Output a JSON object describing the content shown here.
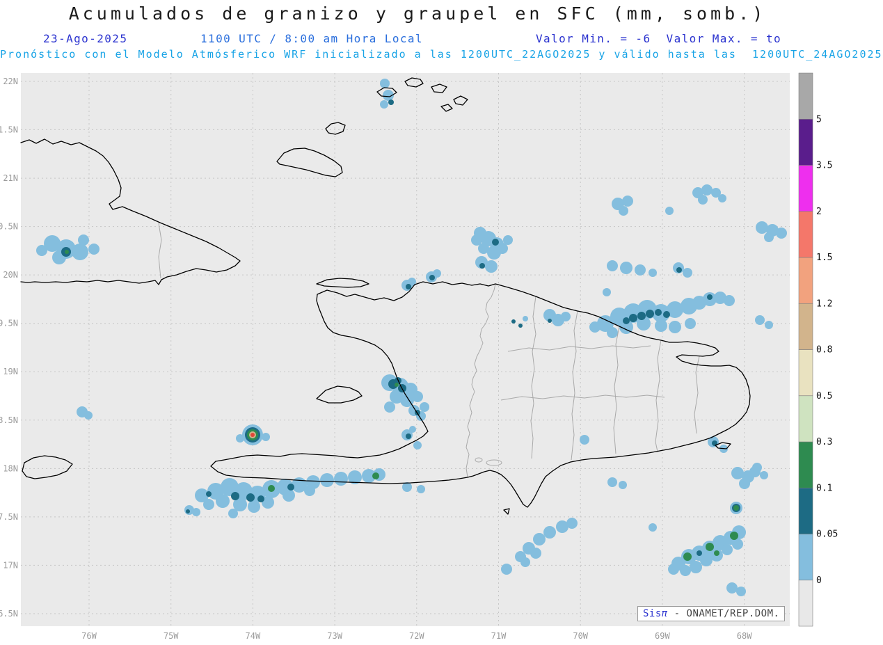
{
  "header": {
    "title": "Acumulados de granizo y graupel en SFC (mm, somb.)",
    "date": "23-Ago-2025",
    "time": "1100 UTC / 8:00 am Hora Local",
    "minmax": "Valor Min. = -6  Valor Max. = to",
    "forecast": "Pronóstico con el Modelo Atmósferico WRF inicializado a las 1200UTC_22AGO2025 y válido hasta las  1200UTC_24AGO2025"
  },
  "watermark": {
    "brand": "Sis",
    "pi": "π",
    "org": "- ONAMET/REP.DOM."
  },
  "colors": {
    "title": "#1b1b1b",
    "date": "#2b33cf",
    "time": "#2b6fdd",
    "forecast": "#17a3e6",
    "axis": "#9a9a9a",
    "map_bg": "#eaeaea",
    "grid": "#c6c6c6",
    "coast": "#000000",
    "admin": "#a9a9a9",
    "colorbar_label": "#111111",
    "wm_blue": "#2b33cf",
    "wm_text": "#444444"
  },
  "chart_data": {
    "type": "heatmap",
    "title": "Acumulados de granizo y graupel en SFC (mm, somb.)",
    "units": "mm",
    "value_min": "-6",
    "value_max": "to",
    "x_tick_labels": [
      "76W",
      "75W",
      "74W",
      "73W",
      "72W",
      "71W",
      "70W",
      "69W",
      "68W"
    ],
    "y_tick_labels": [
      "22N",
      "1.5N",
      "21N",
      "0.5N",
      "20N",
      "9.5N",
      "19N",
      "8.5N",
      "18N",
      "7.5N",
      "17N",
      "6.5N"
    ],
    "colorbar": {
      "tick_labels_top_to_bottom": [
        "5",
        "3.5",
        "2",
        "1.5",
        "1.2",
        "0.8",
        "0.5",
        "0.3",
        "0.1",
        "0.05",
        "0"
      ],
      "segment_colors_bottom_to_top": [
        "#e8e8e8",
        "#84bede",
        "#1d6b84",
        "#2e8b50",
        "#cfe3c0",
        "#e9e2c0",
        "#d2b48c",
        "#f2a27e",
        "#f4776a",
        "#ee2fee",
        "#5a1d8c",
        "#a8a8a8"
      ]
    },
    "palette": {
      "L": "#84bede",
      "T": "#1d6b84",
      "G": "#2e8b50",
      "N": "#d2b48c",
      "R": "#e04838"
    },
    "blobs": [
      [
        75,
        245,
        12,
        "L"
      ],
      [
        95,
        253,
        14,
        "L"
      ],
      [
        115,
        257,
        12,
        "L"
      ],
      [
        85,
        265,
        10,
        "L"
      ],
      [
        120,
        240,
        8,
        "L"
      ],
      [
        60,
        255,
        8,
        "L"
      ],
      [
        135,
        253,
        8,
        "L"
      ],
      [
        118,
        487,
        8,
        "L"
      ],
      [
        127,
        492,
        6,
        "L"
      ],
      [
        553,
        15,
        7,
        "L"
      ],
      [
        558,
        32,
        8,
        "L"
      ],
      [
        552,
        45,
        6,
        "L"
      ],
      [
        585,
        305,
        8,
        "L"
      ],
      [
        592,
        300,
        6,
        "L"
      ],
      [
        620,
        293,
        8,
        "L"
      ],
      [
        628,
        288,
        6,
        "L"
      ],
      [
        690,
        230,
        9,
        "L"
      ],
      [
        702,
        238,
        11,
        "L"
      ],
      [
        714,
        246,
        10,
        "L"
      ],
      [
        695,
        252,
        8,
        "L"
      ],
      [
        710,
        258,
        10,
        "L"
      ],
      [
        692,
        272,
        9,
        "L"
      ],
      [
        706,
        278,
        9,
        "L"
      ],
      [
        722,
        252,
        8,
        "L"
      ],
      [
        730,
        240,
        7,
        "L"
      ],
      [
        685,
        240,
        8,
        "L"
      ],
      [
        790,
        348,
        9,
        "L"
      ],
      [
        802,
        355,
        9,
        "L"
      ],
      [
        813,
        350,
        7,
        "L"
      ],
      [
        870,
        360,
        12,
        "L"
      ],
      [
        890,
        350,
        13,
        "L"
      ],
      [
        910,
        345,
        14,
        "L"
      ],
      [
        930,
        340,
        14,
        "L"
      ],
      [
        950,
        345,
        13,
        "L"
      ],
      [
        970,
        340,
        12,
        "L"
      ],
      [
        990,
        335,
        12,
        "L"
      ],
      [
        1005,
        330,
        10,
        "L"
      ],
      [
        1020,
        325,
        10,
        "L"
      ],
      [
        1035,
        323,
        9,
        "L"
      ],
      [
        1048,
        327,
        8,
        "L"
      ],
      [
        900,
        365,
        10,
        "L"
      ],
      [
        925,
        360,
        10,
        "L"
      ],
      [
        950,
        363,
        9,
        "L"
      ],
      [
        880,
        373,
        8,
        "L"
      ],
      [
        855,
        365,
        8,
        "L"
      ],
      [
        970,
        365,
        9,
        "L"
      ],
      [
        992,
        360,
        8,
        "L"
      ],
      [
        872,
        315,
        6,
        "L"
      ],
      [
        880,
        277,
        8,
        "L"
      ],
      [
        900,
        280,
        9,
        "L"
      ],
      [
        920,
        283,
        8,
        "L"
      ],
      [
        938,
        287,
        6,
        "L"
      ],
      [
        888,
        188,
        9,
        "L"
      ],
      [
        902,
        184,
        8,
        "L"
      ],
      [
        896,
        198,
        7,
        "L"
      ],
      [
        1003,
        172,
        8,
        "L"
      ],
      [
        1016,
        168,
        8,
        "L"
      ],
      [
        1029,
        172,
        7,
        "L"
      ],
      [
        1038,
        180,
        6,
        "L"
      ],
      [
        1010,
        182,
        7,
        "L"
      ],
      [
        962,
        198,
        6,
        "L"
      ],
      [
        1095,
        222,
        9,
        "L"
      ],
      [
        1110,
        226,
        9,
        "L"
      ],
      [
        1123,
        230,
        8,
        "L"
      ],
      [
        1105,
        236,
        7,
        "L"
      ],
      [
        975,
        280,
        8,
        "L"
      ],
      [
        988,
        287,
        7,
        "L"
      ],
      [
        1092,
        355,
        7,
        "L"
      ],
      [
        1105,
        362,
        6,
        "L"
      ],
      [
        560,
        445,
        12,
        "L"
      ],
      [
        575,
        450,
        12,
        "L"
      ],
      [
        590,
        455,
        10,
        "L"
      ],
      [
        570,
        465,
        10,
        "L"
      ],
      [
        585,
        470,
        10,
        "L"
      ],
      [
        560,
        480,
        8,
        "L"
      ],
      [
        600,
        465,
        8,
        "L"
      ],
      [
        610,
        480,
        7,
        "L"
      ],
      [
        595,
        485,
        8,
        "L"
      ],
      [
        605,
        493,
        7,
        "L"
      ],
      [
        363,
        520,
        15,
        "L"
      ],
      [
        345,
        525,
        6,
        "L"
      ],
      [
        382,
        523,
        6,
        "L"
      ],
      [
        290,
        607,
        10,
        "L"
      ],
      [
        310,
        601,
        12,
        "L"
      ],
      [
        330,
        595,
        13,
        "L"
      ],
      [
        350,
        601,
        13,
        "L"
      ],
      [
        370,
        605,
        12,
        "L"
      ],
      [
        390,
        598,
        13,
        "L"
      ],
      [
        410,
        595,
        12,
        "L"
      ],
      [
        430,
        592,
        11,
        "L"
      ],
      [
        450,
        588,
        10,
        "L"
      ],
      [
        470,
        585,
        10,
        "L"
      ],
      [
        490,
        583,
        10,
        "L"
      ],
      [
        510,
        581,
        10,
        "L"
      ],
      [
        530,
        579,
        10,
        "L"
      ],
      [
        545,
        577,
        9,
        "L"
      ],
      [
        320,
        615,
        10,
        "L"
      ],
      [
        345,
        620,
        10,
        "L"
      ],
      [
        365,
        623,
        9,
        "L"
      ],
      [
        385,
        617,
        9,
        "L"
      ],
      [
        300,
        620,
        8,
        "L"
      ],
      [
        335,
        633,
        7,
        "L"
      ],
      [
        415,
        607,
        9,
        "L"
      ],
      [
        445,
        600,
        8,
        "L"
      ],
      [
        585,
        595,
        7,
        "L"
      ],
      [
        605,
        598,
        6,
        "L"
      ],
      [
        272,
        628,
        7,
        "L"
      ],
      [
        282,
        631,
        6,
        "L"
      ],
      [
        585,
        520,
        8,
        "L"
      ],
      [
        600,
        535,
        6,
        "L"
      ],
      [
        593,
        512,
        5,
        "L"
      ],
      [
        755,
        353,
        4,
        "L"
      ],
      [
        728,
        713,
        8,
        "L"
      ],
      [
        748,
        695,
        8,
        "L"
      ],
      [
        760,
        683,
        9,
        "L"
      ],
      [
        775,
        670,
        9,
        "L"
      ],
      [
        790,
        660,
        9,
        "L"
      ],
      [
        808,
        652,
        9,
        "L"
      ],
      [
        822,
        647,
        8,
        "L"
      ],
      [
        755,
        703,
        7,
        "L"
      ],
      [
        770,
        690,
        8,
        "L"
      ],
      [
        975,
        705,
        10,
        "L"
      ],
      [
        990,
        695,
        11,
        "L"
      ],
      [
        1005,
        690,
        11,
        "L"
      ],
      [
        1020,
        683,
        11,
        "L"
      ],
      [
        1035,
        675,
        11,
        "L"
      ],
      [
        1050,
        668,
        10,
        "L"
      ],
      [
        1062,
        660,
        10,
        "L"
      ],
      [
        1000,
        710,
        9,
        "L"
      ],
      [
        1015,
        700,
        9,
        "L"
      ],
      [
        1030,
        693,
        9,
        "L"
      ],
      [
        985,
        715,
        8,
        "L"
      ],
      [
        968,
        713,
        8,
        "L"
      ],
      [
        1045,
        685,
        8,
        "L"
      ],
      [
        1060,
        677,
        8,
        "L"
      ],
      [
        938,
        653,
        6,
        "L"
      ],
      [
        1060,
        575,
        9,
        "L"
      ],
      [
        1075,
        580,
        9,
        "L"
      ],
      [
        1085,
        573,
        8,
        "L"
      ],
      [
        1070,
        590,
        8,
        "L"
      ],
      [
        1088,
        567,
        7,
        "L"
      ],
      [
        1098,
        578,
        6,
        "L"
      ],
      [
        1058,
        625,
        9,
        "L"
      ],
      [
        1025,
        530,
        8,
        "L"
      ],
      [
        1040,
        540,
        6,
        "L"
      ],
      [
        880,
        588,
        7,
        "L"
      ],
      [
        895,
        592,
        6,
        "L"
      ],
      [
        1052,
        740,
        8,
        "L"
      ],
      [
        1065,
        745,
        7,
        "L"
      ],
      [
        840,
        527,
        7,
        "L"
      ],
      [
        95,
        257,
        7,
        "T"
      ],
      [
        562,
        42,
        4,
        "T"
      ],
      [
        587,
        307,
        4,
        "T"
      ],
      [
        621,
        294,
        4,
        "T"
      ],
      [
        693,
        277,
        4,
        "T"
      ],
      [
        712,
        243,
        5,
        "T"
      ],
      [
        790,
        356,
        3,
        "T"
      ],
      [
        910,
        352,
        6,
        "T"
      ],
      [
        922,
        349,
        6,
        "T"
      ],
      [
        934,
        346,
        6,
        "T"
      ],
      [
        946,
        344,
        5,
        "T"
      ],
      [
        958,
        347,
        5,
        "T"
      ],
      [
        900,
        356,
        5,
        "T"
      ],
      [
        1020,
        322,
        4,
        "T"
      ],
      [
        976,
        283,
        4,
        "T"
      ],
      [
        565,
        447,
        7,
        "T"
      ],
      [
        578,
        453,
        6,
        "T"
      ],
      [
        572,
        442,
        5,
        "T"
      ],
      [
        600,
        488,
        4,
        "T"
      ],
      [
        363,
        520,
        11,
        "T"
      ],
      [
        338,
        608,
        6,
        "T"
      ],
      [
        360,
        610,
        6,
        "T"
      ],
      [
        300,
        605,
        4,
        "T"
      ],
      [
        418,
        595,
        5,
        "T"
      ],
      [
        375,
        612,
        5,
        "T"
      ],
      [
        270,
        630,
        3,
        "T"
      ],
      [
        587,
        522,
        4,
        "T"
      ],
      [
        738,
        357,
        3,
        "T"
      ],
      [
        748,
        363,
        3,
        "T"
      ],
      [
        1005,
        690,
        4,
        "T"
      ],
      [
        1058,
        625,
        6,
        "T"
      ],
      [
        1027,
        532,
        4,
        "T"
      ],
      [
        96,
        257,
        3,
        "G"
      ],
      [
        570,
        448,
        3,
        "G"
      ],
      [
        363,
        520,
        8,
        "G"
      ],
      [
        390,
        597,
        5,
        "G"
      ],
      [
        540,
        579,
        5,
        "G"
      ],
      [
        988,
        695,
        6,
        "G"
      ],
      [
        1020,
        681,
        6,
        "G"
      ],
      [
        1055,
        665,
        6,
        "G"
      ],
      [
        1030,
        690,
        4,
        "G"
      ],
      [
        1058,
        625,
        4,
        "G"
      ],
      [
        363,
        520,
        5,
        "N"
      ],
      [
        363,
        520,
        3,
        "R"
      ]
    ]
  }
}
